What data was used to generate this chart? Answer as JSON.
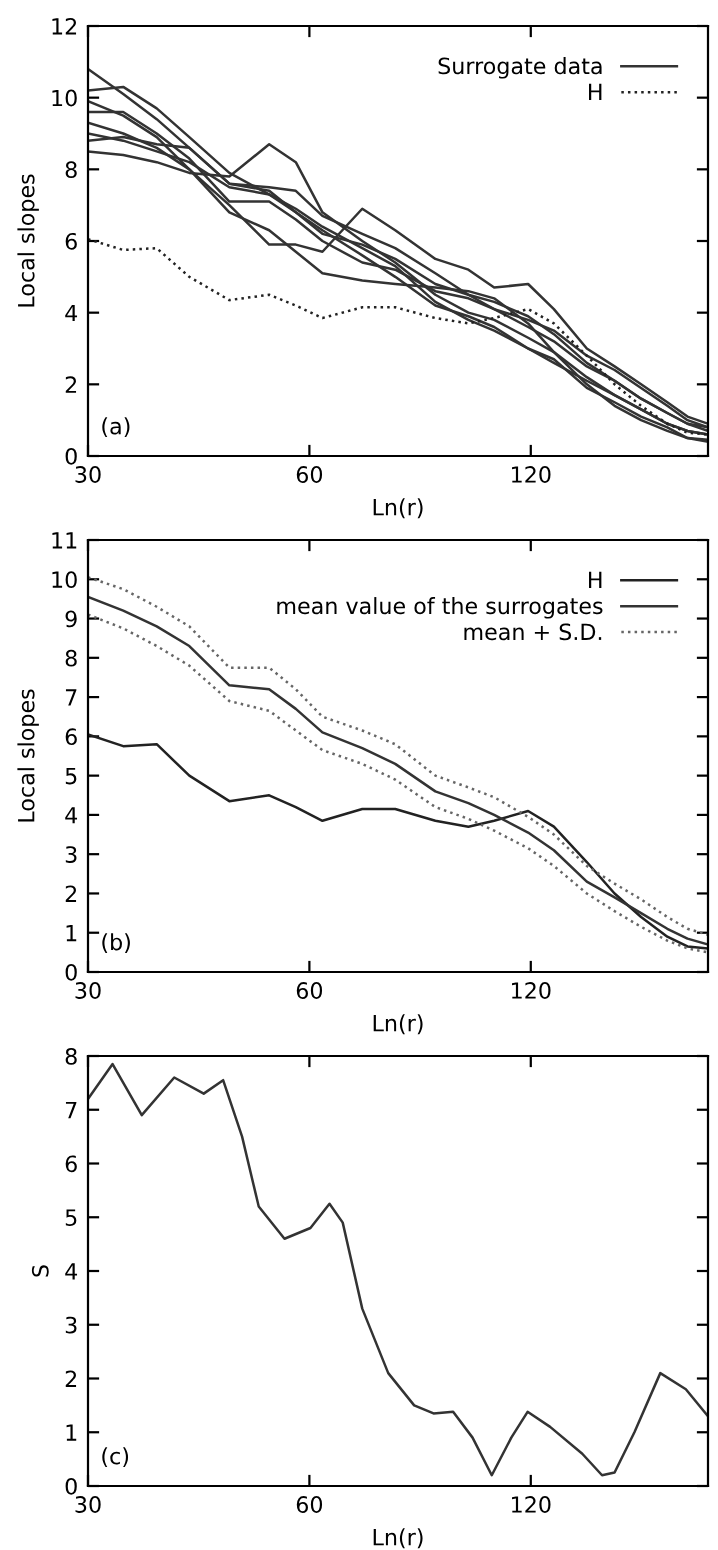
{
  "chart_data": [
    {
      "type": "line",
      "xlabel": "Ln(r)",
      "ylabel": "Local slopes",
      "log": "x",
      "xlim": [
        30,
        209
      ],
      "xticks": [
        30,
        60,
        120
      ],
      "ylim": [
        0,
        12
      ],
      "yticks": [
        0,
        2,
        4,
        6,
        8,
        10,
        12
      ],
      "grid": false,
      "legend": "top right",
      "annotations": [
        "(a)"
      ],
      "x": [
        30,
        33.5,
        37.2,
        41.2,
        46.7,
        52.9,
        57.5,
        62.5,
        70.8,
        78.5,
        89,
        98.7,
        107,
        119,
        129,
        143,
        156,
        169.5,
        184,
        196,
        209
      ],
      "series": [
        {
          "name": "Surrogate data",
          "color": "#333333",
          "line_style": "solid",
          "values": [
            10.8,
            10.1,
            9.4,
            8.6,
            7.6,
            7.4,
            6.8,
            6.2,
            5.9,
            5.5,
            4.8,
            4.5,
            4.3,
            3.9,
            3.4,
            2.6,
            2.1,
            1.6,
            1.2,
            0.9,
            0.8
          ]
        },
        {
          "color": "#333333",
          "line_style": "solid",
          "values": [
            8.5,
            8.4,
            8.2,
            7.9,
            7.8,
            8.7,
            8.2,
            6.8,
            6.0,
            5.4,
            4.5,
            4.0,
            3.8,
            3.3,
            2.9,
            2.2,
            1.7,
            1.3,
            0.9,
            0.7,
            0.6
          ]
        },
        {
          "color": "#333333",
          "line_style": "solid",
          "values": [
            9.3,
            9.0,
            8.6,
            8.0,
            7.0,
            5.9,
            5.9,
            5.7,
            6.9,
            6.3,
            5.5,
            5.2,
            4.7,
            4.8,
            4.1,
            3.0,
            2.5,
            2.0,
            1.5,
            1.1,
            0.9
          ]
        },
        {
          "color": "#333333",
          "line_style": "solid",
          "values": [
            10.2,
            10.3,
            9.7,
            8.9,
            7.9,
            7.3,
            6.8,
            6.3,
            5.6,
            5.0,
            4.2,
            3.9,
            3.6,
            3.0,
            2.7,
            1.9,
            1.5,
            1.1,
            0.8,
            0.5,
            0.4
          ]
        },
        {
          "color": "#333333",
          "line_style": "solid",
          "values": [
            9.6,
            9.6,
            9.0,
            8.3,
            7.1,
            7.1,
            6.6,
            6.0,
            5.4,
            5.2,
            4.6,
            4.4,
            4.1,
            3.6,
            3.2,
            2.5,
            2.1,
            1.6,
            1.2,
            0.9,
            0.7
          ]
        },
        {
          "color": "#333333",
          "line_style": "solid",
          "values": [
            9.0,
            8.8,
            8.5,
            8.2,
            7.5,
            7.3,
            6.9,
            6.4,
            5.8,
            5.3,
            4.3,
            3.8,
            3.5,
            3.0,
            2.6,
            2.1,
            1.7,
            1.3,
            0.9,
            0.7,
            0.6
          ]
        },
        {
          "color": "#333333",
          "line_style": "solid",
          "values": [
            9.9,
            9.5,
            8.9,
            8.0,
            6.8,
            6.3,
            5.7,
            5.1,
            4.9,
            4.8,
            4.7,
            4.6,
            4.4,
            3.7,
            2.9,
            2.0,
            1.4,
            1.0,
            0.7,
            0.5,
            0.45
          ]
        },
        {
          "color": "#333333",
          "line_style": "solid",
          "values": [
            8.8,
            8.9,
            8.7,
            8.6,
            7.6,
            7.5,
            7.4,
            6.7,
            6.2,
            5.8,
            5.1,
            4.5,
            4.1,
            3.8,
            3.5,
            2.8,
            2.4,
            1.9,
            1.4,
            1.0,
            0.8
          ]
        },
        {
          "name": "H",
          "color": "#222222",
          "line_style": "dotted",
          "values": [
            6.05,
            5.75,
            5.8,
            5.0,
            4.35,
            4.5,
            4.2,
            3.85,
            4.15,
            4.15,
            3.85,
            3.7,
            3.85,
            4.1,
            3.7,
            2.8,
            2.0,
            1.4,
            0.9,
            0.65,
            0.6
          ]
        }
      ]
    },
    {
      "type": "line",
      "xlabel": "Ln(r)",
      "ylabel": "Local slopes",
      "log": "x",
      "xlim": [
        30,
        209
      ],
      "xticks": [
        30,
        60,
        120
      ],
      "ylim": [
        0,
        11
      ],
      "yticks": [
        0,
        1,
        2,
        3,
        4,
        5,
        6,
        7,
        8,
        9,
        10,
        11
      ],
      "grid": false,
      "legend": "top right",
      "annotations": [
        "(b)"
      ],
      "x": [
        30,
        33.5,
        37.2,
        41.2,
        46.7,
        52.9,
        57.5,
        62.5,
        70.8,
        78.5,
        89,
        98.7,
        107,
        119,
        129,
        143,
        156,
        169.5,
        184,
        196,
        209
      ],
      "series": [
        {
          "name": "H",
          "color": "#222222",
          "line_style": "solid",
          "values": [
            6.05,
            5.75,
            5.8,
            5.0,
            4.35,
            4.5,
            4.2,
            3.85,
            4.15,
            4.15,
            3.85,
            3.7,
            3.85,
            4.1,
            3.7,
            2.8,
            2.0,
            1.4,
            0.9,
            0.65,
            0.6
          ]
        },
        {
          "name": "mean value of the surrogates",
          "color": "#333333",
          "line_style": "solid",
          "values": [
            9.55,
            9.2,
            8.8,
            8.3,
            7.3,
            7.2,
            6.7,
            6.1,
            5.7,
            5.3,
            4.6,
            4.3,
            4.0,
            3.55,
            3.1,
            2.3,
            1.9,
            1.5,
            1.1,
            0.85,
            0.7
          ]
        },
        {
          "name": "mean + S.D.",
          "color": "#666666",
          "line_style": "dotted",
          "values": [
            10.05,
            9.75,
            9.3,
            8.8,
            7.75,
            7.75,
            7.2,
            6.5,
            6.15,
            5.8,
            5.0,
            4.7,
            4.45,
            3.95,
            3.5,
            2.7,
            2.25,
            1.85,
            1.4,
            1.1,
            0.95
          ]
        },
        {
          "color": "#666666",
          "line_style": "dotted",
          "values": [
            9.1,
            8.75,
            8.3,
            7.8,
            6.9,
            6.65,
            6.15,
            5.65,
            5.3,
            4.9,
            4.2,
            3.9,
            3.6,
            3.15,
            2.7,
            2.0,
            1.55,
            1.15,
            0.8,
            0.6,
            0.5
          ]
        }
      ]
    },
    {
      "type": "line",
      "xlabel": "Ln(r)",
      "ylabel": "S",
      "log": "x",
      "xlim": [
        30,
        209
      ],
      "xticks": [
        30,
        60,
        120
      ],
      "ylim": [
        0,
        8
      ],
      "yticks": [
        0,
        1,
        2,
        3,
        4,
        5,
        6,
        7,
        8
      ],
      "grid": false,
      "legend": false,
      "annotations": [
        "(c)"
      ],
      "x": [
        30,
        32.4,
        35.5,
        39.3,
        43.1,
        45.8,
        48.6,
        51.2,
        55.5,
        60.2,
        63.9,
        66.6,
        70.8,
        76.8,
        83.3,
        88.5,
        94.1,
        100,
        106.2,
        112.9,
        118.8,
        127.5,
        141,
        150,
        156,
        166,
        180,
        195,
        209
      ],
      "series": [
        {
          "color": "#333333",
          "line_style": "solid",
          "values": [
            7.2,
            7.85,
            6.9,
            7.6,
            7.3,
            7.55,
            6.5,
            5.2,
            4.6,
            4.8,
            5.25,
            4.9,
            3.3,
            2.1,
            1.5,
            1.35,
            1.38,
            0.9,
            0.2,
            0.9,
            1.38,
            1.1,
            0.6,
            0.2,
            0.25,
            1.0,
            2.1,
            1.8,
            1.3
          ]
        }
      ]
    }
  ]
}
